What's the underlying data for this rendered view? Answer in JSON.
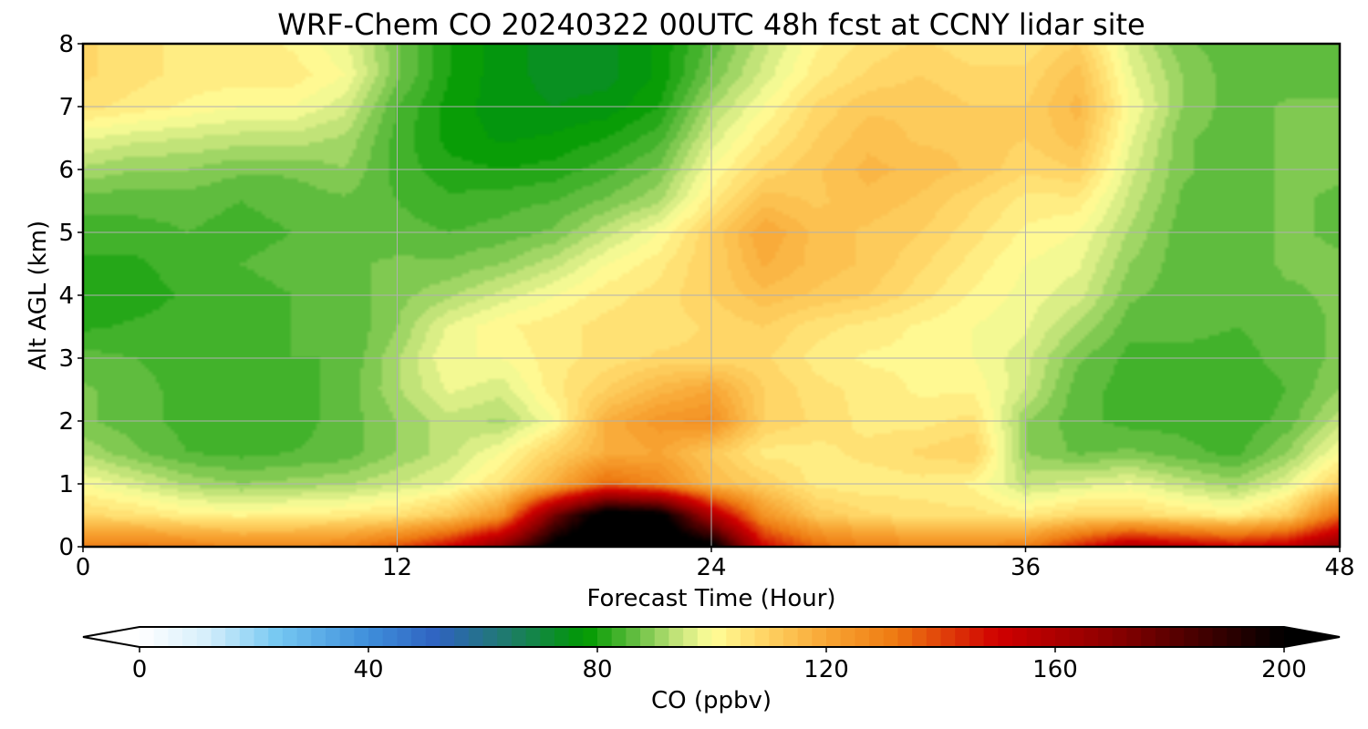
{
  "chart_data": {
    "type": "heatmap",
    "title": "WRF-Chem CO  20240322 00UTC 48h fcst at CCNY lidar site",
    "xlabel": "Forecast Time (Hour)",
    "ylabel": "Alt AGL (km)",
    "xlim": [
      0,
      48
    ],
    "ylim": [
      0,
      8
    ],
    "xticks": [
      0,
      12,
      24,
      36,
      48
    ],
    "yticks": [
      0,
      1,
      2,
      3,
      4,
      5,
      6,
      7,
      8
    ],
    "grid": true,
    "x": [
      0,
      2,
      4,
      6,
      8,
      10,
      12,
      14,
      16,
      18,
      20,
      22,
      24,
      26,
      28,
      30,
      32,
      34,
      36,
      38,
      40,
      42,
      44,
      46,
      48
    ],
    "y": [
      0,
      0.5,
      1,
      1.5,
      2,
      2.5,
      3,
      3.5,
      4,
      4.5,
      5,
      5.5,
      6,
      6.5,
      7,
      7.5,
      8
    ],
    "z": [
      [
        130,
        132,
        130,
        128,
        128,
        130,
        138,
        150,
        170,
        205,
        215,
        212,
        205,
        150,
        135,
        130,
        128,
        128,
        130,
        145,
        160,
        155,
        150,
        155,
        170
      ],
      [
        108,
        106,
        103,
        102,
        103,
        104,
        106,
        112,
        125,
        175,
        210,
        205,
        160,
        125,
        112,
        108,
        106,
        106,
        104,
        108,
        108,
        105,
        103,
        110,
        135
      ],
      [
        100,
        96,
        92,
        90,
        91,
        92,
        95,
        98,
        106,
        118,
        135,
        128,
        115,
        110,
        104,
        103,
        104,
        102,
        94,
        96,
        98,
        94,
        91,
        97,
        110
      ],
      [
        92,
        88,
        85,
        84,
        85,
        86,
        90,
        94,
        100,
        110,
        118,
        120,
        112,
        104,
        104,
        106,
        108,
        110,
        90,
        87,
        88,
        86,
        84,
        90,
        100
      ],
      [
        88,
        86,
        84,
        83,
        84,
        86,
        90,
        94,
        92,
        100,
        118,
        124,
        126,
        110,
        107,
        104,
        104,
        106,
        90,
        86,
        84,
        84,
        83,
        86,
        94
      ],
      [
        88,
        86,
        84,
        83,
        84,
        86,
        92,
        98,
        96,
        104,
        110,
        116,
        120,
        110,
        106,
        104,
        102,
        102,
        95,
        86,
        84,
        84,
        83,
        85,
        90
      ],
      [
        86,
        85,
        84,
        84,
        85,
        85,
        92,
        100,
        100,
        104,
        106,
        108,
        108,
        108,
        104,
        102,
        102,
        100,
        96,
        88,
        84,
        84,
        84,
        86,
        88
      ],
      [
        82,
        83,
        84,
        84,
        85,
        85,
        90,
        98,
        102,
        104,
        106,
        106,
        108,
        110,
        106,
        104,
        102,
        100,
        98,
        92,
        86,
        86,
        85,
        86,
        88
      ],
      [
        80,
        81,
        83,
        84,
        85,
        86,
        89,
        92,
        96,
        100,
        104,
        106,
        110,
        114,
        112,
        110,
        106,
        102,
        99,
        96,
        88,
        86,
        86,
        87,
        88
      ],
      [
        82,
        82,
        84,
        85,
        86,
        87,
        88,
        88,
        90,
        94,
        100,
        104,
        110,
        118,
        114,
        112,
        108,
        104,
        100,
        98,
        90,
        86,
        86,
        88,
        88
      ],
      [
        84,
        84,
        85,
        84,
        85,
        86,
        86,
        85,
        86,
        88,
        94,
        100,
        110,
        120,
        114,
        112,
        110,
        106,
        102,
        100,
        92,
        86,
        86,
        88,
        87
      ],
      [
        86,
        86,
        86,
        85,
        86,
        87,
        85,
        83,
        84,
        85,
        88,
        92,
        104,
        114,
        112,
        114,
        112,
        108,
        104,
        104,
        94,
        87,
        86,
        88,
        87
      ],
      [
        92,
        90,
        90,
        88,
        88,
        90,
        84,
        81,
        80,
        81,
        84,
        88,
        100,
        108,
        112,
        116,
        114,
        112,
        108,
        110,
        96,
        88,
        86,
        88,
        88
      ],
      [
        98,
        96,
        95,
        94,
        94,
        92,
        84,
        79,
        77,
        78,
        80,
        84,
        96,
        104,
        110,
        114,
        112,
        112,
        110,
        114,
        98,
        88,
        86,
        88,
        88
      ],
      [
        106,
        104,
        102,
        100,
        100,
        96,
        85,
        79,
        76,
        75,
        76,
        80,
        92,
        100,
        108,
        112,
        112,
        110,
        110,
        116,
        100,
        90,
        86,
        88,
        88
      ],
      [
        108,
        106,
        104,
        104,
        104,
        100,
        88,
        80,
        76,
        74,
        74,
        78,
        88,
        96,
        104,
        108,
        110,
        108,
        108,
        114,
        98,
        90,
        86,
        86,
        86
      ],
      [
        108,
        106,
        104,
        104,
        102,
        98,
        88,
        80,
        76,
        74,
        74,
        78,
        86,
        94,
        102,
        106,
        108,
        106,
        106,
        110,
        96,
        88,
        86,
        86,
        86
      ]
    ],
    "colorbar": {
      "label": "CO  (ppbv)",
      "ticks": [
        0,
        40,
        80,
        120,
        160,
        200
      ],
      "range": [
        0,
        200
      ],
      "extend": "both"
    }
  },
  "colors": {
    "grid": "#b0b0b0",
    "colormap_stops": [
      [
        0,
        "#ffffff"
      ],
      [
        12,
        "#d4eefb"
      ],
      [
        24,
        "#76c8f2"
      ],
      [
        40,
        "#3f8fdb"
      ],
      [
        52,
        "#2f62c0"
      ],
      [
        64,
        "#1f7a6e"
      ],
      [
        78,
        "#009a00"
      ],
      [
        86,
        "#5cbb3c"
      ],
      [
        94,
        "#c4e47a"
      ],
      [
        100,
        "#ffff99"
      ],
      [
        108,
        "#ffd96a"
      ],
      [
        120,
        "#f8a634"
      ],
      [
        132,
        "#ee7a12"
      ],
      [
        150,
        "#d00000"
      ],
      [
        170,
        "#8b0000"
      ],
      [
        200,
        "#000000"
      ]
    ]
  }
}
